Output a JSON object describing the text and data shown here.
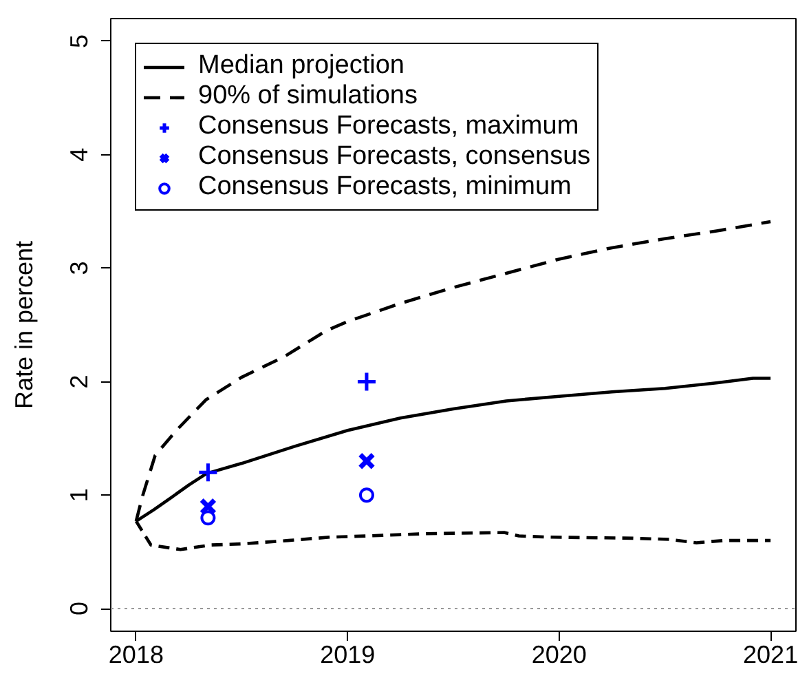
{
  "chart_data": {
    "type": "line",
    "ylabel": "Rate in percent",
    "xlim": [
      2017.88,
      2021.12
    ],
    "xticks": [
      2018,
      2019,
      2020,
      2021
    ],
    "ylim": [
      -0.2,
      5.2
    ],
    "yticks": [
      0,
      1,
      2,
      3,
      4,
      5
    ],
    "legend": "top left",
    "ref_lines": [
      {
        "axis": "y",
        "value": 0,
        "color": "#999999",
        "line_style": "dotted"
      }
    ],
    "series": [
      {
        "name": "Median projection",
        "color": "#000000",
        "line_style": "solid",
        "marker": "none",
        "x": [
          2018.0,
          2018.083,
          2018.167,
          2018.25,
          2018.333,
          2018.5,
          2018.75,
          2019.0,
          2019.25,
          2019.5,
          2019.75,
          2020.0,
          2020.25,
          2020.5,
          2020.75,
          2020.917,
          2021.0
        ],
        "values": [
          0.77,
          0.87,
          0.98,
          1.09,
          1.19,
          1.28,
          1.43,
          1.57,
          1.68,
          1.76,
          1.83,
          1.87,
          1.91,
          1.94,
          1.99,
          2.03,
          2.03
        ]
      },
      {
        "name": "90% of simulations",
        "color": "#000000",
        "line_style": "dashed",
        "marker": "none",
        "x": [
          2018.0,
          2018.03,
          2018.09,
          2018.19,
          2018.33,
          2018.5,
          2018.7,
          2018.9,
          2019.0,
          2019.25,
          2019.5,
          2019.7,
          2020.0,
          2020.25,
          2020.5,
          2020.75,
          2021.0
        ],
        "values": [
          0.77,
          0.99,
          1.35,
          1.57,
          1.84,
          2.04,
          2.22,
          2.45,
          2.53,
          2.69,
          2.83,
          2.93,
          3.08,
          3.18,
          3.26,
          3.33,
          3.41
        ]
      },
      {
        "color": "#000000",
        "line_style": "dashed",
        "marker": "none",
        "x": [
          2018.0,
          2018.07,
          2018.21,
          2018.35,
          2018.5,
          2018.72,
          2018.92,
          2019.09,
          2019.37,
          2019.74,
          2019.81,
          2019.94,
          2020.35,
          2020.52,
          2020.65,
          2020.78,
          2021.0
        ],
        "values": [
          0.77,
          0.56,
          0.52,
          0.56,
          0.57,
          0.6,
          0.63,
          0.64,
          0.66,
          0.67,
          0.64,
          0.63,
          0.62,
          0.61,
          0.58,
          0.6,
          0.6
        ]
      },
      {
        "name": "Consensus Forecasts, maximum",
        "type": "scatter",
        "color": "#0000ff",
        "marker": "cross",
        "x": [
          2018.34,
          2019.09
        ],
        "values": [
          1.2,
          2.0
        ]
      },
      {
        "name": "Consensus Forecasts, consensus",
        "type": "scatter",
        "color": "#0000ff",
        "marker": "x",
        "x": [
          2018.34,
          2019.09
        ],
        "values": [
          0.9,
          1.3
        ]
      },
      {
        "name": "Consensus Forecasts, minimum",
        "type": "scatter",
        "color": "#0000ff",
        "marker": "circle",
        "x": [
          2018.34,
          2019.09
        ],
        "values": [
          0.8,
          1.0
        ]
      }
    ]
  }
}
